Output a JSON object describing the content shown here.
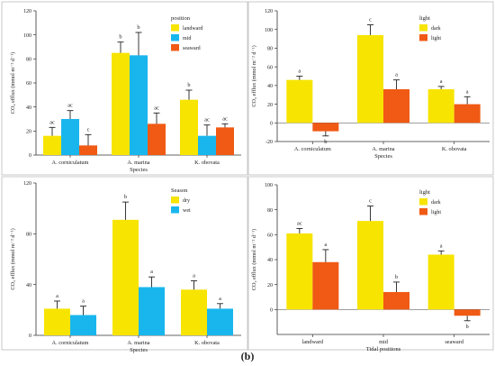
{
  "caption": "(b)",
  "colors": {
    "yellow": "#f7e400",
    "blue": "#19b6ee",
    "orange": "#f05a14"
  },
  "chart_data": [
    {
      "type": "bar",
      "xlabel": "Species",
      "ylabel": "CO₂ efflux (mmol m⁻² d⁻¹)",
      "categories": [
        "A. corniculatum",
        "A. marina",
        "K. obovata"
      ],
      "ylim": [
        0,
        120
      ],
      "yticks": [
        0,
        20,
        40,
        60,
        80,
        100,
        120
      ],
      "legend": {
        "title": "position",
        "placement": "top-right"
      },
      "series": [
        {
          "name": "landward",
          "color": "#f7e400",
          "values": [
            16,
            85,
            46
          ],
          "errors": [
            7,
            9,
            8
          ],
          "letters": [
            "ac",
            "b",
            "b"
          ]
        },
        {
          "name": "mid",
          "color": "#19b6ee",
          "values": [
            30,
            83,
            16
          ],
          "errors": [
            7,
            19,
            9
          ],
          "letters": [
            "ac",
            "b",
            "ac"
          ]
        },
        {
          "name": "seaward",
          "color": "#f05a14",
          "values": [
            8,
            26,
            23
          ],
          "errors": [
            9,
            9,
            3
          ],
          "letters": [
            "c",
            "ac",
            "ac"
          ]
        }
      ]
    },
    {
      "type": "bar",
      "xlabel": "Species",
      "ylabel": "CO₂ efflux (mmol m⁻² d⁻¹)",
      "categories": [
        "A. corniculatum",
        "A. marina",
        "K. obovata"
      ],
      "ylim": [
        -20,
        120
      ],
      "yticks": [
        -20,
        0,
        20,
        40,
        60,
        80,
        100,
        120
      ],
      "legend": {
        "title": "light",
        "placement": "top-right"
      },
      "series": [
        {
          "name": "dark",
          "color": "#f7e400",
          "values": [
            46,
            94,
            36
          ],
          "errors": [
            4,
            11,
            3
          ],
          "letters": [
            "a",
            "c",
            "a"
          ]
        },
        {
          "name": "light",
          "color": "#f05a14",
          "values": [
            -9,
            36,
            20
          ],
          "errors": [
            5,
            10,
            8
          ],
          "letters": [
            "b",
            "a",
            "a"
          ]
        }
      ]
    },
    {
      "type": "bar",
      "xlabel": "Species",
      "ylabel": "CO₂ efflux (mmol m⁻² d⁻¹)",
      "categories": [
        "A. corniculatum",
        "A. marina",
        "K. obovata"
      ],
      "ylim": [
        0,
        120
      ],
      "yticks": [
        0,
        40,
        80,
        120
      ],
      "legend": {
        "title": "Season",
        "placement": "top-right"
      },
      "series": [
        {
          "name": "dry",
          "color": "#f7e400",
          "values": [
            21,
            91,
            36
          ],
          "errors": [
            6,
            14,
            7
          ],
          "letters": [
            "a",
            "b",
            "a"
          ]
        },
        {
          "name": "wet",
          "color": "#19b6ee",
          "values": [
            16,
            38,
            21
          ],
          "errors": [
            7,
            8,
            4
          ],
          "letters": [
            "a",
            "a",
            "a"
          ]
        }
      ]
    },
    {
      "type": "bar",
      "xlabel": "Tidal positions",
      "ylabel": "CO₂ efflux (mmol m⁻² d⁻¹)",
      "categories": [
        "landward",
        "mid",
        "seaward"
      ],
      "ylim": [
        -20,
        100
      ],
      "yticks": [
        0,
        20,
        40,
        60,
        80,
        100
      ],
      "legend": {
        "title": "light",
        "placement": "top-right"
      },
      "series": [
        {
          "name": "dark",
          "color": "#f7e400",
          "values": [
            61,
            71,
            44
          ],
          "errors": [
            4,
            12,
            3
          ],
          "letters": [
            "ac",
            "c",
            "a"
          ]
        },
        {
          "name": "light",
          "color": "#f05a14",
          "values": [
            38,
            14,
            -5
          ],
          "errors": [
            10,
            8,
            4
          ],
          "letters": [
            "a",
            "b",
            "b"
          ]
        }
      ]
    }
  ]
}
